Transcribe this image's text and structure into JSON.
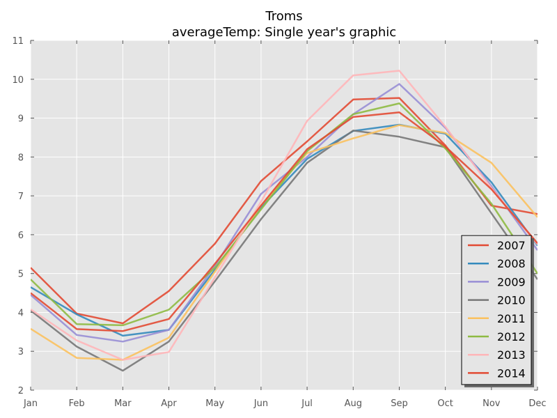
{
  "chart_data": {
    "type": "line",
    "title": "Troms",
    "subtitle": "averageTemp: Single year's graphic",
    "xlabel": "",
    "ylabel": "",
    "categories": [
      "Jan",
      "Feb",
      "Mar",
      "Apr",
      "May",
      "Jun",
      "Jul",
      "Aug",
      "Sep",
      "Oct",
      "Nov",
      "Dec"
    ],
    "ylim": [
      2,
      11
    ],
    "yticks": [
      "2",
      "3",
      "4",
      "5",
      "6",
      "7",
      "8",
      "9",
      "10",
      "11"
    ],
    "grid": true,
    "legend_position": "bottom-right",
    "series": [
      {
        "name": "2007",
        "color": "#E24A33",
        "values": [
          5.15,
          3.97,
          3.72,
          4.55,
          5.77,
          7.38,
          8.4,
          9.48,
          9.52,
          8.3,
          6.75,
          6.53
        ]
      },
      {
        "name": "2008",
        "color": "#348ABD",
        "values": [
          4.65,
          3.95,
          3.4,
          3.55,
          5.1,
          6.7,
          7.95,
          8.67,
          8.83,
          8.6,
          7.35,
          5.72
        ]
      },
      {
        "name": "2009",
        "color": "#988ED5",
        "values": [
          4.45,
          3.42,
          3.25,
          3.55,
          5.2,
          7.05,
          8.0,
          9.1,
          9.88,
          8.75,
          7.25,
          5.6
        ]
      },
      {
        "name": "2010",
        "color": "#777777",
        "values": [
          4.05,
          3.12,
          2.5,
          3.25,
          4.8,
          6.4,
          7.85,
          8.68,
          8.52,
          8.25,
          6.55,
          4.85
        ]
      },
      {
        "name": "2011",
        "color": "#FBC15E",
        "values": [
          3.58,
          2.83,
          2.78,
          3.35,
          5.05,
          6.75,
          8.1,
          8.48,
          8.82,
          8.62,
          7.85,
          6.45
        ]
      },
      {
        "name": "2012",
        "color": "#8EBA42",
        "values": [
          4.85,
          3.7,
          3.67,
          4.07,
          5.15,
          6.65,
          8.15,
          9.1,
          9.38,
          8.22,
          6.8,
          5.0
        ]
      },
      {
        "name": "2013",
        "color": "#FFB5B8",
        "values": [
          4.08,
          3.28,
          2.78,
          2.98,
          4.9,
          6.85,
          8.93,
          10.1,
          10.22,
          8.78,
          7.2,
          5.75
        ]
      },
      {
        "name": "2014",
        "color": "#E24A33",
        "values": [
          4.5,
          3.57,
          3.52,
          3.83,
          5.25,
          6.75,
          8.2,
          9.03,
          9.15,
          8.27,
          7.17,
          5.78
        ]
      }
    ]
  }
}
